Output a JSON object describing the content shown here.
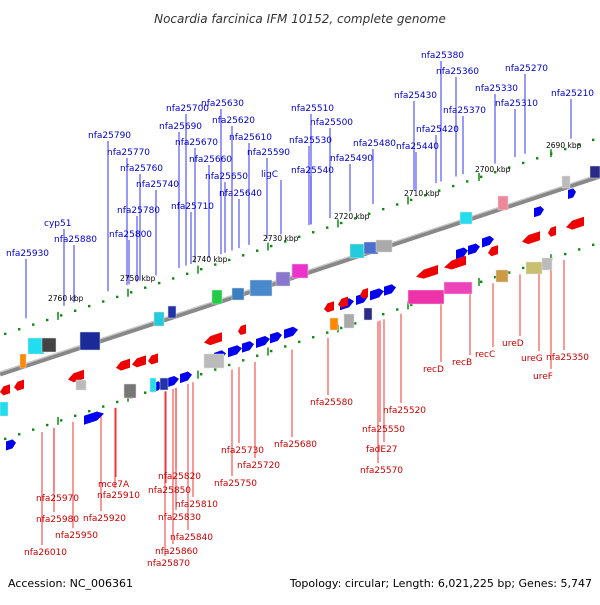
{
  "title": "Nocardia farcinica IFM 10152, complete genome",
  "footer": {
    "accession": "Accession: NC_006361",
    "topology": "Topology: circular; Length: 6,021,225 bp; Genes: 5,747"
  },
  "colors": {
    "forward": "#0000ee",
    "reverse": "#ee0000",
    "label_forward": "#0000cc",
    "label_reverse": "#cc0000",
    "backbone": "#888888",
    "tick": "#118811"
  },
  "kbp_ticks": [
    "2760 kbp",
    "2750 kbp",
    "2740 kbp",
    "2730 kbp",
    "2720 kbp",
    "2710 kbp",
    "2700 kbp",
    "2690 kbp"
  ],
  "top_labels": [
    "nfa25930",
    "cyp51",
    "nfa25880",
    "nfa25790",
    "nfa25770",
    "nfa25760",
    "nfa25740",
    "nfa25780",
    "nfa25800",
    "nfa25700",
    "nfa25690",
    "nfa25670",
    "nfa25660",
    "nfa25650",
    "nfa25710",
    "nfa25630",
    "nfa25620",
    "nfa25610",
    "nfa25640",
    "ligC",
    "nfa25590",
    "nfa25510",
    "nfa25500",
    "nfa25530",
    "nfa25540",
    "nfa25480",
    "nfa25490",
    "nfa25380",
    "nfa25360",
    "nfa25430",
    "nfa25370",
    "nfa25420",
    "nfa25440",
    "nfa25270",
    "nfa25330",
    "nfa25310",
    "nfa25210"
  ],
  "bottom_labels": [
    "nfa25970",
    "nfa25980",
    "nfa25950",
    "nfa26010",
    "mce7A",
    "nfa25910",
    "nfa25920",
    "nfa25820",
    "nfa25850",
    "nfa25810",
    "nfa25830",
    "nfa25840",
    "nfa25860",
    "nfa25870",
    "nfa25730",
    "nfa25720",
    "nfa25750",
    "nfa25680",
    "nfa25580",
    "nfa25520",
    "nfa25550",
    "fadE27",
    "nfa25570",
    "recD",
    "recB",
    "recC",
    "ureD",
    "ureG",
    "ureF",
    "nfa25350"
  ]
}
